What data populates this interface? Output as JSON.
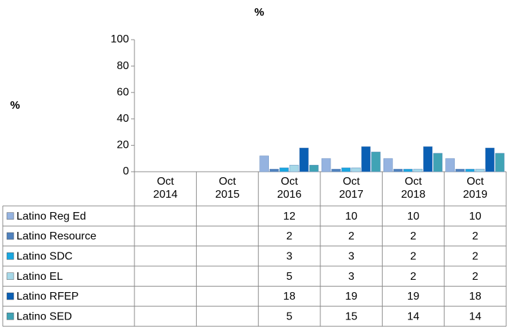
{
  "chart_data": {
    "type": "bar",
    "title": "%",
    "y_label": "%",
    "categories": [
      "Oct 2014",
      "Oct 2015",
      "Oct 2016",
      "Oct 2017",
      "Oct 2018",
      "Oct 2019"
    ],
    "series": [
      {
        "name": "Latino Reg Ed",
        "color": "#95b3e0",
        "values": [
          null,
          null,
          12,
          10,
          10,
          10
        ]
      },
      {
        "name": "Latino Resource",
        "color": "#4f81bd",
        "values": [
          null,
          null,
          2,
          2,
          2,
          2
        ]
      },
      {
        "name": "Latino SDC",
        "color": "#1aa7e0",
        "values": [
          null,
          null,
          3,
          3,
          2,
          2
        ]
      },
      {
        "name": "Latino EL",
        "color": "#a6d8e8",
        "values": [
          null,
          null,
          5,
          3,
          2,
          2
        ]
      },
      {
        "name": "Latino RFEP",
        "color": "#0a5fb4",
        "values": [
          null,
          null,
          18,
          19,
          19,
          18
        ]
      },
      {
        "name": "Latino SED",
        "color": "#40a3b5",
        "values": [
          null,
          null,
          5,
          15,
          14,
          14
        ]
      }
    ],
    "ylim": [
      0,
      100
    ],
    "yticks": [
      0,
      20,
      40,
      60,
      80,
      100
    ]
  }
}
